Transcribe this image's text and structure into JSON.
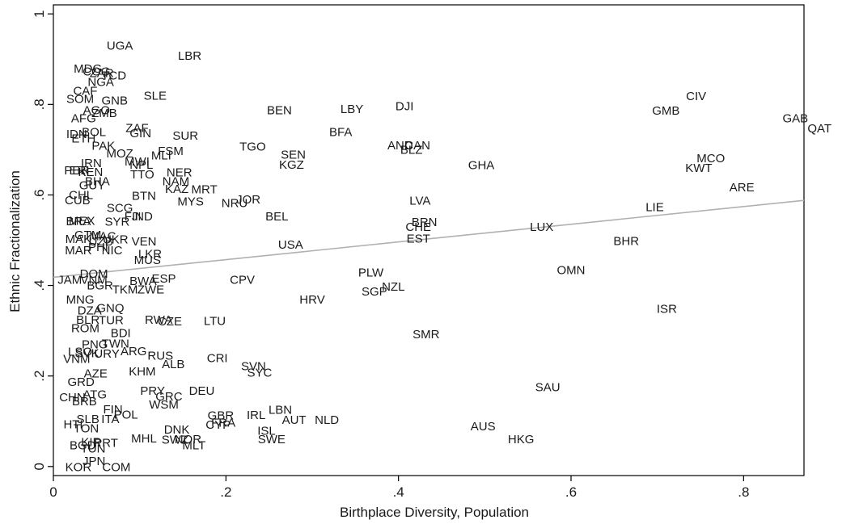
{
  "chart_data": {
    "type": "scatter",
    "title": "",
    "xlabel": "Birthplace Diversity, Population",
    "ylabel": "Ethnic Fractionalization",
    "xlim": [
      0,
      0.87
    ],
    "ylim": [
      -0.02,
      1.02
    ],
    "x_ticks": [
      0,
      0.2,
      0.4,
      0.6,
      0.8
    ],
    "x_tick_labels": [
      "0",
      ".2",
      ".4",
      ".6",
      ".8"
    ],
    "y_ticks": [
      0,
      0.2,
      0.4,
      0.6,
      0.8,
      1
    ],
    "y_tick_labels": [
      "0",
      ".2",
      ".4",
      ".6",
      ".8",
      "1"
    ],
    "grid": false,
    "legend": "none",
    "fit_line": {
      "x": [
        0,
        0.87
      ],
      "y": [
        0.418,
        0.588
      ],
      "color": "#b0b0b0"
    },
    "points": [
      {
        "label": "UGA",
        "x": 0.077,
        "y": 0.93
      },
      {
        "label": "LBR",
        "x": 0.158,
        "y": 0.908
      },
      {
        "label": "MDG",
        "x": 0.04,
        "y": 0.879
      },
      {
        "label": "COG",
        "x": 0.05,
        "y": 0.873
      },
      {
        "label": "ZAR",
        "x": 0.056,
        "y": 0.869
      },
      {
        "label": "TCD",
        "x": 0.07,
        "y": 0.864
      },
      {
        "label": "NGA",
        "x": 0.055,
        "y": 0.85
      },
      {
        "label": "CAF",
        "x": 0.037,
        "y": 0.83
      },
      {
        "label": "SLE",
        "x": 0.118,
        "y": 0.819
      },
      {
        "label": "SOM",
        "x": 0.031,
        "y": 0.812
      },
      {
        "label": "GNB",
        "x": 0.071,
        "y": 0.809
      },
      {
        "label": "AGO",
        "x": 0.05,
        "y": 0.787
      },
      {
        "label": "ZMB",
        "x": 0.059,
        "y": 0.781
      },
      {
        "label": "AFG",
        "x": 0.035,
        "y": 0.769
      },
      {
        "label": "CIV",
        "x": 0.745,
        "y": 0.818
      },
      {
        "label": "GMB",
        "x": 0.71,
        "y": 0.786
      },
      {
        "label": "BEN",
        "x": 0.262,
        "y": 0.787
      },
      {
        "label": "LBY",
        "x": 0.346,
        "y": 0.79
      },
      {
        "label": "DJI",
        "x": 0.407,
        "y": 0.796
      },
      {
        "label": "GAB",
        "x": 0.86,
        "y": 0.769
      },
      {
        "label": "QAT",
        "x": 0.888,
        "y": 0.747
      },
      {
        "label": "ZAF",
        "x": 0.097,
        "y": 0.748
      },
      {
        "label": "IDN",
        "x": 0.027,
        "y": 0.735
      },
      {
        "label": "BOL",
        "x": 0.047,
        "y": 0.739
      },
      {
        "label": "ETH",
        "x": 0.035,
        "y": 0.725
      },
      {
        "label": "GIN",
        "x": 0.101,
        "y": 0.736
      },
      {
        "label": "SUR",
        "x": 0.153,
        "y": 0.731
      },
      {
        "label": "BFA",
        "x": 0.333,
        "y": 0.739
      },
      {
        "label": "PAK",
        "x": 0.058,
        "y": 0.709
      },
      {
        "label": "AND",
        "x": 0.402,
        "y": 0.71
      },
      {
        "label": "CAN",
        "x": 0.422,
        "y": 0.71
      },
      {
        "label": "BLZ",
        "x": 0.415,
        "y": 0.7
      },
      {
        "label": "TGO",
        "x": 0.231,
        "y": 0.707
      },
      {
        "label": "MOZ",
        "x": 0.077,
        "y": 0.692
      },
      {
        "label": "FSM",
        "x": 0.136,
        "y": 0.697
      },
      {
        "label": "MLI",
        "x": 0.125,
        "y": 0.687
      },
      {
        "label": "SEN",
        "x": 0.278,
        "y": 0.689
      },
      {
        "label": "KGZ",
        "x": 0.276,
        "y": 0.667
      },
      {
        "label": "MCO",
        "x": 0.762,
        "y": 0.681
      },
      {
        "label": "KWT",
        "x": 0.748,
        "y": 0.66
      },
      {
        "label": "GHA",
        "x": 0.496,
        "y": 0.666
      },
      {
        "label": "MWI",
        "x": 0.097,
        "y": 0.674
      },
      {
        "label": "NPL",
        "x": 0.102,
        "y": 0.667
      },
      {
        "label": "IRN",
        "x": 0.044,
        "y": 0.67
      },
      {
        "label": "PER",
        "x": 0.027,
        "y": 0.654
      },
      {
        "label": "ERI",
        "x": 0.03,
        "y": 0.654
      },
      {
        "label": "KEN",
        "x": 0.043,
        "y": 0.651
      },
      {
        "label": "TTO",
        "x": 0.103,
        "y": 0.645
      },
      {
        "label": "NER",
        "x": 0.146,
        "y": 0.65
      },
      {
        "label": "BHA",
        "x": 0.051,
        "y": 0.63
      },
      {
        "label": "NAM",
        "x": 0.142,
        "y": 0.63
      },
      {
        "label": "GUY",
        "x": 0.045,
        "y": 0.621
      },
      {
        "label": "KAZ",
        "x": 0.143,
        "y": 0.613
      },
      {
        "label": "MRT",
        "x": 0.175,
        "y": 0.612
      },
      {
        "label": "BTN",
        "x": 0.105,
        "y": 0.598
      },
      {
        "label": "CHL",
        "x": 0.032,
        "y": 0.6
      },
      {
        "label": "CUB",
        "x": 0.028,
        "y": 0.588
      },
      {
        "label": "MYS",
        "x": 0.159,
        "y": 0.586
      },
      {
        "label": "JOR",
        "x": 0.226,
        "y": 0.59
      },
      {
        "label": "NRU",
        "x": 0.21,
        "y": 0.582
      },
      {
        "label": "ARE",
        "x": 0.798,
        "y": 0.617
      },
      {
        "label": "LVA",
        "x": 0.425,
        "y": 0.587
      },
      {
        "label": "LIE",
        "x": 0.697,
        "y": 0.573
      },
      {
        "label": "SCG",
        "x": 0.077,
        "y": 0.571
      },
      {
        "label": "FJI",
        "x": 0.092,
        "y": 0.553
      },
      {
        "label": "IND",
        "x": 0.103,
        "y": 0.553
      },
      {
        "label": "BEL",
        "x": 0.259,
        "y": 0.553
      },
      {
        "label": "BRN",
        "x": 0.43,
        "y": 0.54
      },
      {
        "label": "CHE",
        "x": 0.423,
        "y": 0.529
      },
      {
        "label": "LUX",
        "x": 0.566,
        "y": 0.529
      },
      {
        "label": "MEX",
        "x": 0.033,
        "y": 0.543
      },
      {
        "label": "BRA",
        "x": 0.029,
        "y": 0.542
      },
      {
        "label": "SYR",
        "x": 0.074,
        "y": 0.541
      },
      {
        "label": "EST",
        "x": 0.423,
        "y": 0.504
      },
      {
        "label": "BHR",
        "x": 0.664,
        "y": 0.498
      },
      {
        "label": "GTM",
        "x": 0.04,
        "y": 0.512
      },
      {
        "label": "MAC",
        "x": 0.057,
        "y": 0.509
      },
      {
        "label": "MAK",
        "x": 0.029,
        "y": 0.503
      },
      {
        "label": "UKR",
        "x": 0.072,
        "y": 0.502
      },
      {
        "label": "UZB",
        "x": 0.055,
        "y": 0.497
      },
      {
        "label": "VEN",
        "x": 0.105,
        "y": 0.497
      },
      {
        "label": "USA",
        "x": 0.275,
        "y": 0.49
      },
      {
        "label": "MAR",
        "x": 0.029,
        "y": 0.478
      },
      {
        "label": "PHI",
        "x": 0.052,
        "y": 0.485
      },
      {
        "label": "NIC",
        "x": 0.068,
        "y": 0.478
      },
      {
        "label": "LKR",
        "x": 0.112,
        "y": 0.47
      },
      {
        "label": "MUS",
        "x": 0.109,
        "y": 0.456
      },
      {
        "label": "PLW",
        "x": 0.368,
        "y": 0.429
      },
      {
        "label": "OMN",
        "x": 0.6,
        "y": 0.434
      },
      {
        "label": "DOM",
        "x": 0.047,
        "y": 0.426
      },
      {
        "label": "JAM",
        "x": 0.019,
        "y": 0.413
      },
      {
        "label": "BGR",
        "x": 0.054,
        "y": 0.4
      },
      {
        "label": "VNM",
        "x": 0.047,
        "y": 0.413
      },
      {
        "label": "BWA",
        "x": 0.104,
        "y": 0.41
      },
      {
        "label": "ESP",
        "x": 0.128,
        "y": 0.415
      },
      {
        "label": "CPV",
        "x": 0.219,
        "y": 0.413
      },
      {
        "label": "NZL",
        "x": 0.394,
        "y": 0.397
      },
      {
        "label": "SGP",
        "x": 0.372,
        "y": 0.387
      },
      {
        "label": "TKM",
        "x": 0.083,
        "y": 0.391
      },
      {
        "label": "ZWE",
        "x": 0.113,
        "y": 0.391
      },
      {
        "label": "HRV",
        "x": 0.3,
        "y": 0.369
      },
      {
        "label": "MNG",
        "x": 0.031,
        "y": 0.369
      },
      {
        "label": "GNQ",
        "x": 0.066,
        "y": 0.35
      },
      {
        "label": "DZA",
        "x": 0.042,
        "y": 0.345
      },
      {
        "label": "ISR",
        "x": 0.711,
        "y": 0.348
      },
      {
        "label": "RWA",
        "x": 0.122,
        "y": 0.324
      },
      {
        "label": "CZE",
        "x": 0.135,
        "y": 0.321
      },
      {
        "label": "LTU",
        "x": 0.187,
        "y": 0.322
      },
      {
        "label": "BLR",
        "x": 0.04,
        "y": 0.324
      },
      {
        "label": "TUR",
        "x": 0.067,
        "y": 0.323
      },
      {
        "label": "ROM",
        "x": 0.037,
        "y": 0.306
      },
      {
        "label": "BDI",
        "x": 0.078,
        "y": 0.295
      },
      {
        "label": "SMR",
        "x": 0.432,
        "y": 0.292
      },
      {
        "label": "PNG",
        "x": 0.048,
        "y": 0.27
      },
      {
        "label": "TWN",
        "x": 0.072,
        "y": 0.272
      },
      {
        "label": "LSO",
        "x": 0.031,
        "y": 0.254
      },
      {
        "label": "SVK",
        "x": 0.039,
        "y": 0.25
      },
      {
        "label": "URY",
        "x": 0.062,
        "y": 0.249
      },
      {
        "label": "ARG",
        "x": 0.093,
        "y": 0.255
      },
      {
        "label": "VNM2",
        "x": 0.027,
        "y": 0.238
      },
      {
        "label": "RUS",
        "x": 0.124,
        "y": 0.245
      },
      {
        "label": "CRI",
        "x": 0.19,
        "y": 0.24
      },
      {
        "label": "SVN",
        "x": 0.232,
        "y": 0.222
      },
      {
        "label": "SYC",
        "x": 0.239,
        "y": 0.207
      },
      {
        "label": "ALB",
        "x": 0.139,
        "y": 0.226
      },
      {
        "label": "KHM",
        "x": 0.103,
        "y": 0.21
      },
      {
        "label": "AZE",
        "x": 0.049,
        "y": 0.206
      },
      {
        "label": "SAU",
        "x": 0.573,
        "y": 0.175
      },
      {
        "label": "GRD",
        "x": 0.032,
        "y": 0.187
      },
      {
        "label": "DEU",
        "x": 0.172,
        "y": 0.167
      },
      {
        "label": "PRY",
        "x": 0.115,
        "y": 0.167
      },
      {
        "label": "GRC",
        "x": 0.134,
        "y": 0.155
      },
      {
        "label": "WSM",
        "x": 0.128,
        "y": 0.137
      },
      {
        "label": "CHN",
        "x": 0.022,
        "y": 0.153
      },
      {
        "label": "BRB",
        "x": 0.036,
        "y": 0.144
      },
      {
        "label": "ATG",
        "x": 0.048,
        "y": 0.159
      },
      {
        "label": "FIN",
        "x": 0.069,
        "y": 0.126
      },
      {
        "label": "POL",
        "x": 0.084,
        "y": 0.115
      },
      {
        "label": "SLB",
        "x": 0.04,
        "y": 0.105
      },
      {
        "label": "ITA",
        "x": 0.066,
        "y": 0.105
      },
      {
        "label": "HTI",
        "x": 0.023,
        "y": 0.093
      },
      {
        "label": "TON",
        "x": 0.038,
        "y": 0.084
      },
      {
        "label": "GBR",
        "x": 0.194,
        "y": 0.113
      },
      {
        "label": "FRA",
        "x": 0.197,
        "y": 0.097
      },
      {
        "label": "CYP",
        "x": 0.191,
        "y": 0.092
      },
      {
        "label": "IRL",
        "x": 0.235,
        "y": 0.114
      },
      {
        "label": "LBN",
        "x": 0.263,
        "y": 0.125
      },
      {
        "label": "AUT",
        "x": 0.279,
        "y": 0.103
      },
      {
        "label": "NLD",
        "x": 0.317,
        "y": 0.103
      },
      {
        "label": "AUS",
        "x": 0.498,
        "y": 0.089
      },
      {
        "label": "DNK",
        "x": 0.143,
        "y": 0.082
      },
      {
        "label": "ISL",
        "x": 0.247,
        "y": 0.079
      },
      {
        "label": "HKG",
        "x": 0.542,
        "y": 0.06
      },
      {
        "label": "MHL",
        "x": 0.105,
        "y": 0.062
      },
      {
        "label": "SWZ",
        "x": 0.141,
        "y": 0.059
      },
      {
        "label": "NOR",
        "x": 0.156,
        "y": 0.06
      },
      {
        "label": "SWE",
        "x": 0.253,
        "y": 0.06
      },
      {
        "label": "MLT",
        "x": 0.163,
        "y": 0.047
      },
      {
        "label": "BGD",
        "x": 0.034,
        "y": 0.047
      },
      {
        "label": "KIR",
        "x": 0.044,
        "y": 0.054
      },
      {
        "label": "PRT",
        "x": 0.061,
        "y": 0.052
      },
      {
        "label": "TUN",
        "x": 0.046,
        "y": 0.04
      },
      {
        "label": "JPN",
        "x": 0.047,
        "y": 0.012
      },
      {
        "label": "KOR",
        "x": 0.029,
        "y": -0.001
      },
      {
        "label": "COM",
        "x": 0.073,
        "y": -0.001
      }
    ]
  }
}
